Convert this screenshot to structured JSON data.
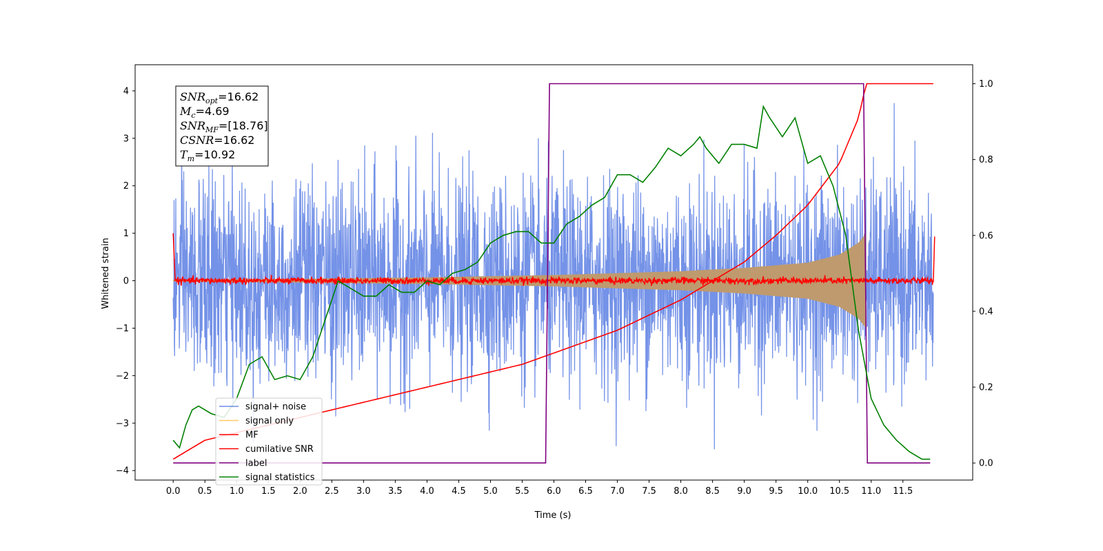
{
  "chart_data": {
    "type": "line",
    "title": "",
    "xlabel": "Time (s)",
    "ylabel": "Whitened strain",
    "xlim": [
      -0.6,
      12.6
    ],
    "ylim": [
      -4.2,
      4.55
    ],
    "y2lim": [
      -0.045,
      1.05
    ],
    "x_ticks": [
      0.0,
      0.5,
      1.0,
      1.5,
      2.0,
      2.5,
      3.0,
      3.5,
      4.0,
      4.5,
      5.0,
      5.5,
      6.0,
      6.5,
      7.0,
      7.5,
      8.0,
      8.5,
      9.0,
      9.5,
      10.0,
      10.5,
      11.0,
      11.5
    ],
    "x_tick_labels": [
      "0.0",
      "0.5",
      "1.0",
      "1.5",
      "2.0",
      "2.5",
      "3.0",
      "3.5",
      "4.0",
      "4.5",
      "5.0",
      "5.5",
      "6.0",
      "6.5",
      "7.0",
      "7.5",
      "8.0",
      "8.5",
      "9.0",
      "9.5",
      "10.0",
      "10.5",
      "11.0",
      "11.5"
    ],
    "y_ticks": [
      -4,
      -3,
      -2,
      -1,
      0,
      1,
      2,
      3,
      4
    ],
    "y_tick_labels": [
      "−4",
      "−3",
      "−2",
      "−1",
      "0",
      "1",
      "2",
      "3",
      "4"
    ],
    "y2_ticks": [
      0.0,
      0.2,
      0.4,
      0.6,
      0.8,
      1.0
    ],
    "y2_tick_labels": [
      "0.0",
      "0.2",
      "0.4",
      "0.6",
      "0.8",
      "1.0"
    ],
    "grid": false,
    "legend_position": "lower-left",
    "annotations": [
      {
        "sym": "SNR",
        "sub": "opt",
        "value": "=16.62"
      },
      {
        "sym": "M",
        "sub": "c",
        "value": "=4.69"
      },
      {
        "sym": "SNR",
        "sub": "MF",
        "value": "=[18.76]"
      },
      {
        "sym": "CSNR",
        "sub": "",
        "value": "=16.62"
      },
      {
        "sym": "T",
        "sub": "m",
        "value": "=10.92"
      }
    ],
    "series": [
      {
        "name": "signal+ noise",
        "color": "#6d8ce6",
        "axis": "left",
        "style": "noise",
        "description_range": [
          -3.8,
          4.2
        ],
        "x_range": [
          0.0,
          11.98
        ]
      },
      {
        "name": "signal only",
        "color": "#ffc966",
        "axis": "left",
        "style": "chirp",
        "envelope": {
          "x": [
            0.0,
            2.0,
            4.0,
            6.0,
            8.0,
            9.0,
            10.0,
            10.5,
            10.8,
            10.92
          ],
          "amp": [
            0.02,
            0.04,
            0.07,
            0.12,
            0.2,
            0.27,
            0.38,
            0.55,
            0.8,
            1.0
          ]
        }
      },
      {
        "name": "MF",
        "color": "#ff0000",
        "axis": "left",
        "style": "mf",
        "x": [
          0.0,
          0.03,
          11.98,
          12.0
        ],
        "y": [
          1.0,
          0.05,
          0.0,
          0.93
        ]
      },
      {
        "name": "cumilative SNR",
        "color": "#ff0000",
        "axis": "right",
        "x": [
          0.0,
          0.5,
          1.0,
          1.5,
          2.0,
          2.5,
          3.0,
          3.5,
          4.0,
          4.5,
          5.0,
          5.5,
          6.0,
          6.5,
          7.0,
          7.5,
          8.0,
          8.5,
          9.0,
          9.5,
          10.0,
          10.5,
          10.8,
          10.92,
          11.98
        ],
        "y": [
          0.01,
          0.06,
          0.08,
          0.1,
          0.12,
          0.14,
          0.16,
          0.18,
          0.2,
          0.22,
          0.24,
          0.26,
          0.29,
          0.32,
          0.35,
          0.39,
          0.43,
          0.48,
          0.53,
          0.6,
          0.68,
          0.79,
          0.91,
          1.0,
          1.0
        ]
      },
      {
        "name": "label",
        "color": "#800080",
        "axis": "right",
        "x": [
          0.0,
          5.87,
          5.93,
          10.88,
          10.94,
          11.93
        ],
        "y": [
          0.0,
          0.0,
          1.0,
          1.0,
          0.0,
          0.0
        ]
      },
      {
        "name": "signal statistics",
        "color": "#008000",
        "axis": "right",
        "x": [
          0.0,
          0.1,
          0.2,
          0.3,
          0.4,
          0.6,
          0.8,
          1.0,
          1.2,
          1.4,
          1.6,
          1.8,
          2.0,
          2.2,
          2.4,
          2.6,
          2.8,
          3.0,
          3.2,
          3.4,
          3.6,
          3.8,
          4.0,
          4.2,
          4.4,
          4.6,
          4.8,
          5.0,
          5.2,
          5.4,
          5.6,
          5.8,
          6.0,
          6.2,
          6.4,
          6.6,
          6.8,
          7.0,
          7.2,
          7.4,
          7.6,
          7.8,
          8.0,
          8.2,
          8.3,
          8.4,
          8.6,
          8.8,
          9.0,
          9.2,
          9.3,
          9.4,
          9.6,
          9.8,
          10.0,
          10.2,
          10.4,
          10.6,
          10.8,
          11.0,
          11.2,
          11.4,
          11.6,
          11.8,
          11.93
        ],
        "y": [
          0.06,
          0.04,
          0.1,
          0.14,
          0.15,
          0.13,
          0.12,
          0.17,
          0.26,
          0.28,
          0.22,
          0.23,
          0.22,
          0.28,
          0.38,
          0.48,
          0.46,
          0.44,
          0.44,
          0.47,
          0.45,
          0.45,
          0.48,
          0.47,
          0.5,
          0.51,
          0.53,
          0.58,
          0.6,
          0.61,
          0.61,
          0.58,
          0.58,
          0.63,
          0.65,
          0.68,
          0.7,
          0.76,
          0.76,
          0.74,
          0.78,
          0.83,
          0.81,
          0.84,
          0.86,
          0.83,
          0.79,
          0.84,
          0.84,
          0.83,
          0.94,
          0.91,
          0.86,
          0.91,
          0.79,
          0.81,
          0.73,
          0.6,
          0.35,
          0.17,
          0.1,
          0.06,
          0.03,
          0.01,
          0.01
        ]
      }
    ]
  }
}
